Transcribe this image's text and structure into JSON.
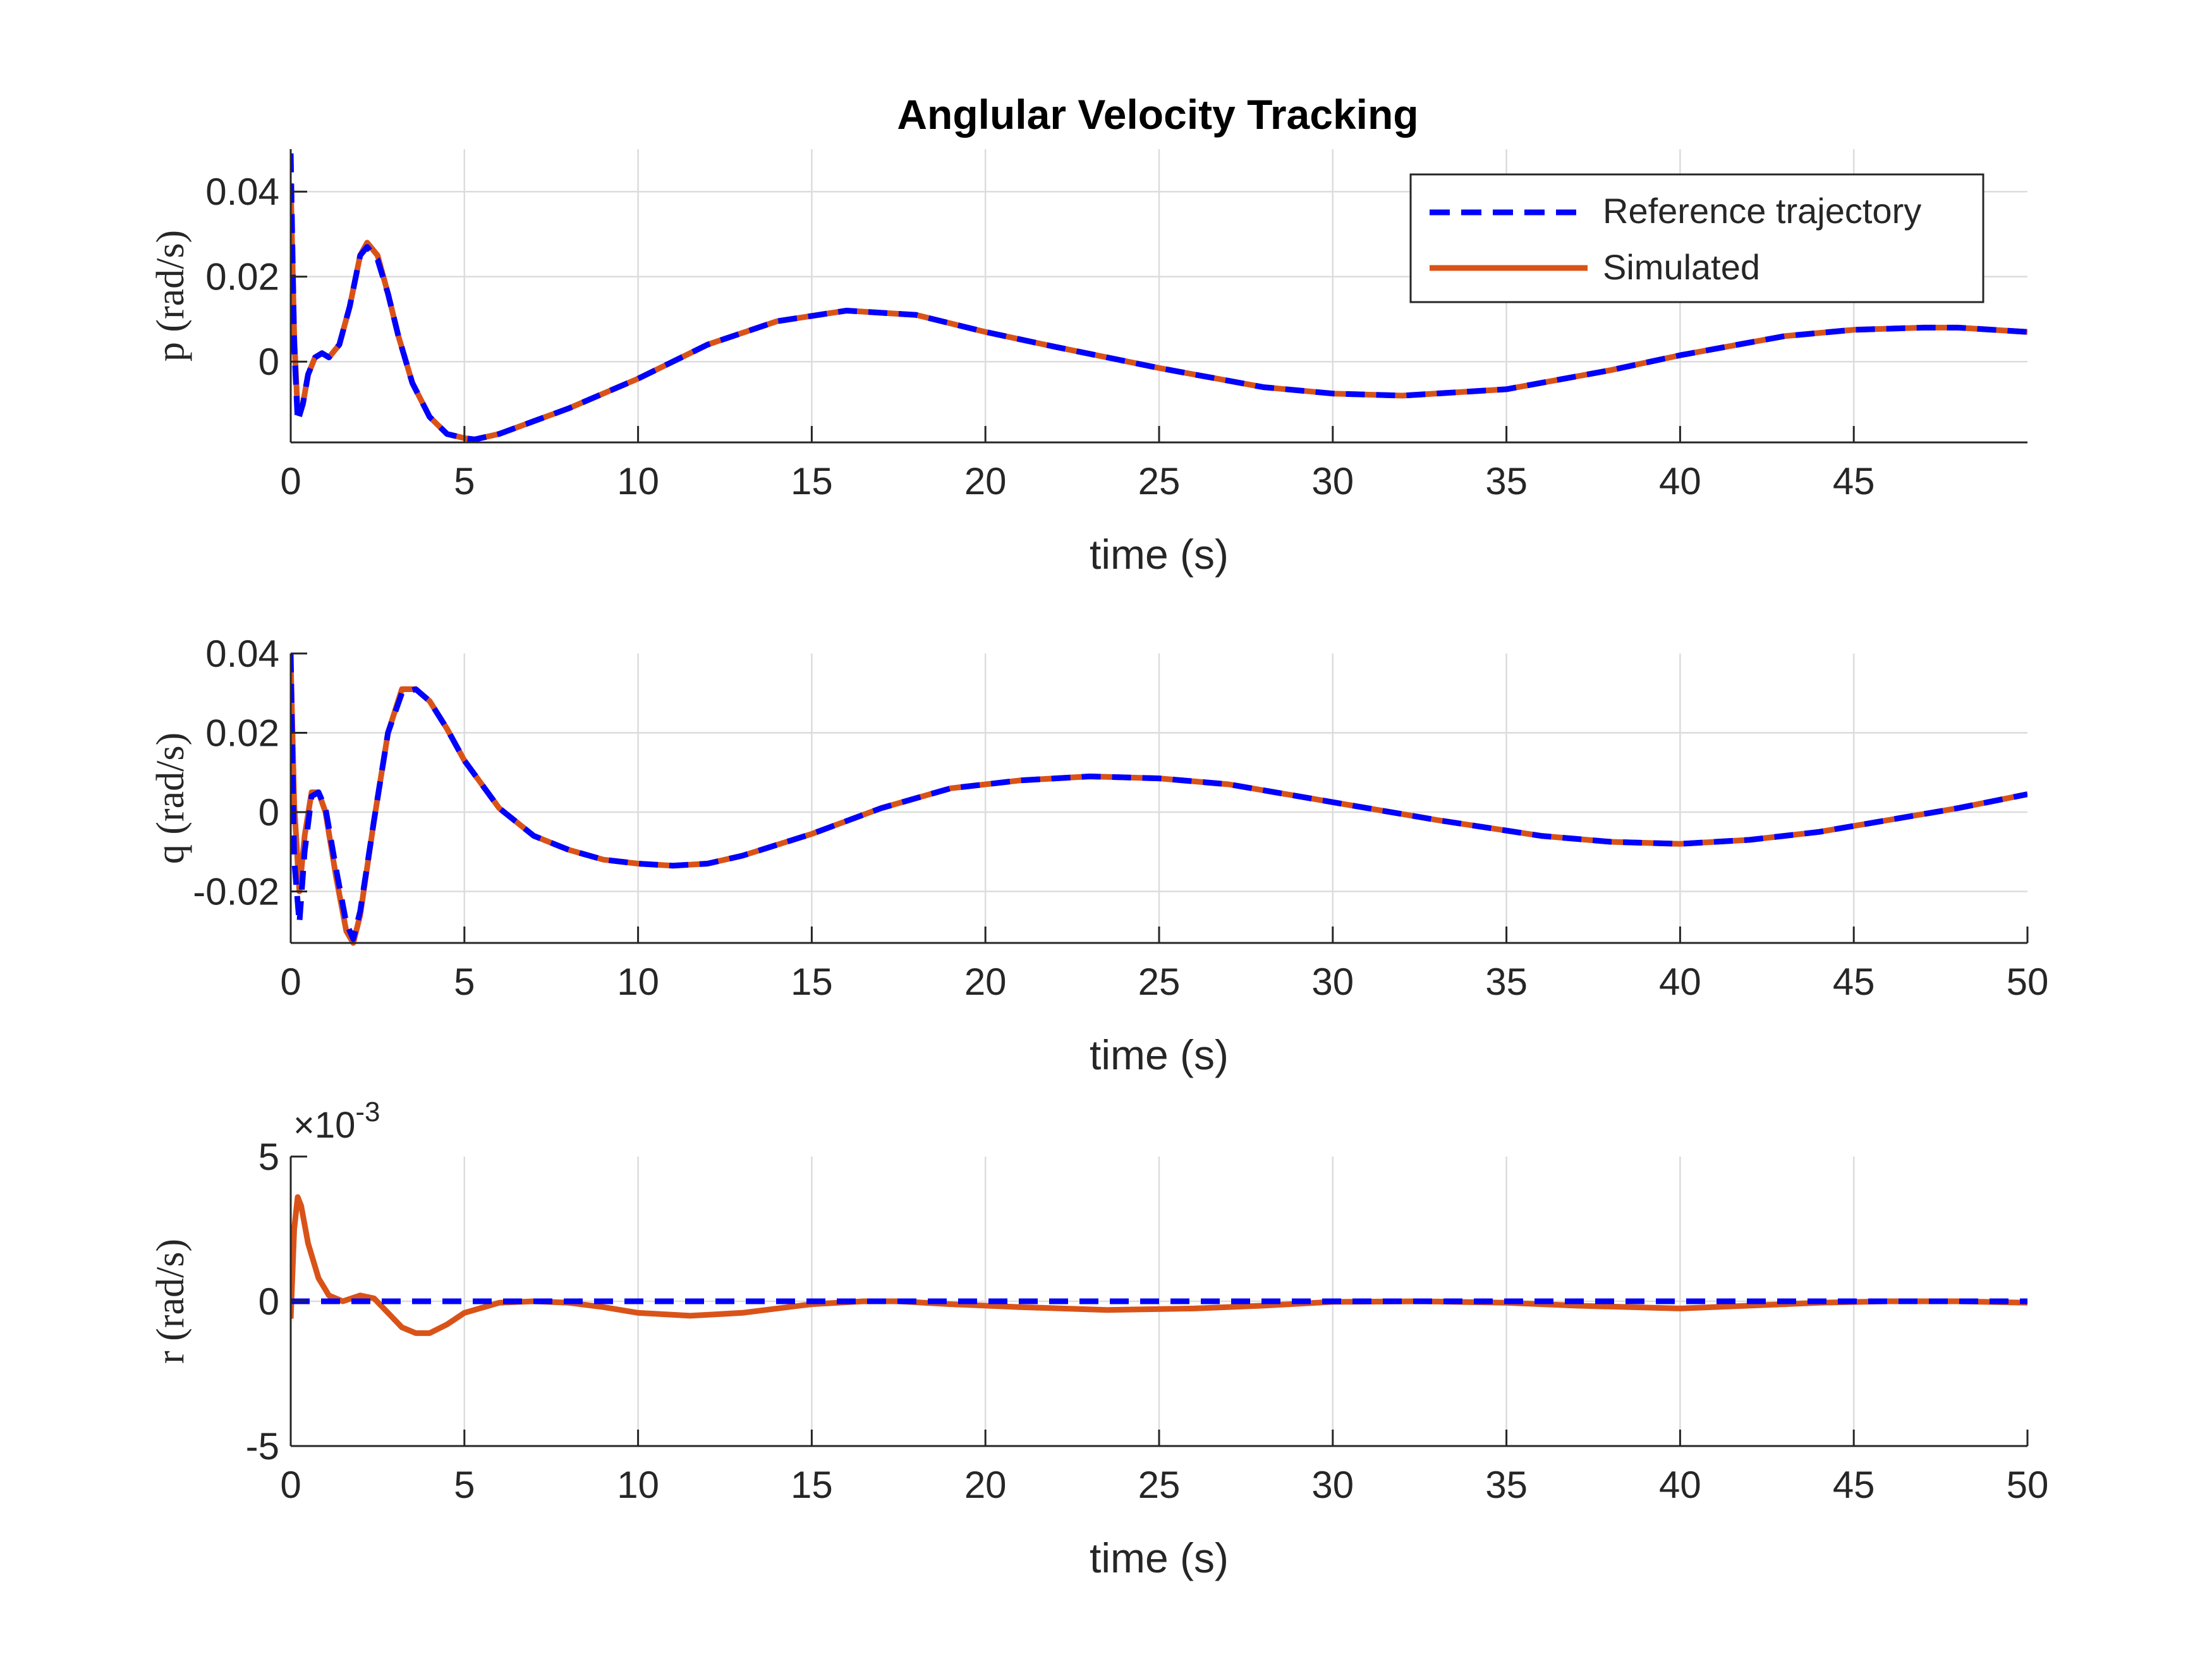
{
  "figure": {
    "title": "Anglular Velocity Tracking",
    "legend": {
      "position": "top-right",
      "entries": [
        {
          "label": "Reference trajectory",
          "style": "dashed",
          "color": "#0000FF"
        },
        {
          "label": "Simulated",
          "style": "solid",
          "color": "#D95319"
        }
      ]
    }
  },
  "chart_data": [
    {
      "type": "line",
      "title": "Anglular Velocity Tracking",
      "xlabel": "time (s)",
      "ylabel": "p (rad/s)",
      "xlim": [
        0,
        50
      ],
      "ylim": [
        -0.019,
        0.05
      ],
      "xticks": [
        0,
        5,
        10,
        15,
        20,
        25,
        30,
        35,
        40,
        45
      ],
      "xticklabels": [
        "0",
        "5",
        "10",
        "15",
        "20",
        "25",
        "30",
        "35",
        "40",
        "45"
      ],
      "yticks": [
        0,
        0.02,
        0.04
      ],
      "yticklabels": [
        "0",
        "0.02",
        "0.04"
      ],
      "grid": true,
      "exponent_label": "",
      "series": [
        {
          "name": "Reference trajectory",
          "color": "#0000FF",
          "style": "dashed",
          "x": [
            0,
            0.1,
            0.2,
            0.35,
            0.5,
            0.7,
            0.9,
            1.1,
            1.4,
            1.7,
            2.0,
            2.2,
            2.5,
            2.8,
            3.1,
            3.5,
            4.0,
            4.5,
            5.0,
            5.3,
            6,
            7,
            8,
            10,
            12,
            14,
            16,
            18,
            20,
            22,
            25,
            28,
            30,
            32,
            35,
            38,
            40,
            43,
            45,
            47,
            48,
            50
          ],
          "y": [
            0.049,
            0.004,
            -0.014,
            -0.01,
            -0.003,
            0.001,
            0.002,
            0.001,
            0.004,
            0.013,
            0.025,
            0.027,
            0.024,
            0.016,
            0.006,
            -0.005,
            -0.013,
            -0.017,
            -0.018,
            -0.0183,
            -0.017,
            -0.014,
            -0.011,
            -0.004,
            0.004,
            0.0095,
            0.012,
            0.011,
            0.007,
            0.0035,
            -0.0015,
            -0.006,
            -0.0075,
            -0.008,
            -0.0065,
            -0.002,
            0.0015,
            0.006,
            0.0075,
            0.008,
            0.008,
            0.007
          ]
        },
        {
          "name": "Simulated",
          "color": "#D95319",
          "style": "solid",
          "x": [
            0,
            0.1,
            0.2,
            0.35,
            0.5,
            0.7,
            0.9,
            1.1,
            1.4,
            1.7,
            2.0,
            2.2,
            2.5,
            2.8,
            3.1,
            3.5,
            4.0,
            4.5,
            5.0,
            5.3,
            6,
            7,
            8,
            10,
            12,
            14,
            16,
            18,
            20,
            22,
            25,
            28,
            30,
            32,
            35,
            38,
            40,
            43,
            45,
            47,
            48,
            50
          ],
          "y": [
            0.042,
            0.006,
            -0.012,
            -0.01,
            -0.003,
            0.001,
            0.002,
            0.001,
            0.004,
            0.013,
            0.025,
            0.028,
            0.025,
            0.016,
            0.006,
            -0.005,
            -0.013,
            -0.017,
            -0.018,
            -0.0183,
            -0.017,
            -0.014,
            -0.011,
            -0.004,
            0.004,
            0.0095,
            0.012,
            0.011,
            0.007,
            0.0035,
            -0.0015,
            -0.006,
            -0.0075,
            -0.008,
            -0.0065,
            -0.002,
            0.0015,
            0.006,
            0.0075,
            0.008,
            0.008,
            0.007
          ]
        }
      ]
    },
    {
      "type": "line",
      "xlabel": "time (s)",
      "ylabel": "q (rad/s)",
      "xlim": [
        0,
        50
      ],
      "ylim": [
        -0.033,
        0.04
      ],
      "xticks": [
        0,
        5,
        10,
        15,
        20,
        25,
        30,
        35,
        40,
        45,
        50
      ],
      "xticklabels": [
        "0",
        "5",
        "10",
        "15",
        "20",
        "25",
        "30",
        "35",
        "40",
        "45",
        "50"
      ],
      "yticks": [
        -0.02,
        0,
        0.02,
        0.04
      ],
      "yticklabels": [
        "-0.02",
        "0",
        "0.02",
        "0.04"
      ],
      "grid": true,
      "exponent_label": "",
      "series": [
        {
          "name": "Reference trajectory",
          "color": "#0000FF",
          "style": "dashed",
          "x": [
            0,
            0.1,
            0.25,
            0.4,
            0.6,
            0.8,
            1.0,
            1.3,
            1.6,
            1.8,
            2.0,
            2.4,
            2.8,
            3.2,
            3.6,
            4.0,
            4.5,
            5.0,
            6,
            7,
            8,
            9,
            10,
            11,
            12,
            13,
            15,
            17,
            19,
            21,
            23,
            25,
            27,
            30,
            33,
            36,
            38,
            40,
            42,
            44,
            46,
            48,
            50
          ],
          "y": [
            0.04,
            -0.012,
            -0.028,
            -0.01,
            0.004,
            0.005,
            0.001,
            -0.014,
            -0.028,
            -0.032,
            -0.025,
            -0.002,
            0.02,
            0.03,
            0.031,
            0.028,
            0.021,
            0.013,
            0.001,
            -0.006,
            -0.0095,
            -0.012,
            -0.013,
            -0.0135,
            -0.013,
            -0.011,
            -0.0055,
            0.001,
            0.006,
            0.008,
            0.009,
            0.0085,
            0.007,
            0.0025,
            -0.002,
            -0.006,
            -0.0075,
            -0.008,
            -0.007,
            -0.005,
            -0.002,
            0.001,
            0.0045
          ]
        },
        {
          "name": "Simulated",
          "color": "#D95319",
          "style": "solid",
          "x": [
            0,
            0.1,
            0.25,
            0.4,
            0.6,
            0.8,
            1.0,
            1.3,
            1.6,
            1.8,
            2.0,
            2.4,
            2.8,
            3.2,
            3.6,
            4.0,
            4.5,
            5.0,
            6,
            7,
            8,
            9,
            10,
            11,
            12,
            13,
            15,
            17,
            19,
            21,
            23,
            25,
            27,
            30,
            33,
            36,
            38,
            40,
            42,
            44,
            46,
            48,
            50
          ],
          "y": [
            0.038,
            0.002,
            -0.02,
            -0.006,
            0.005,
            0.005,
            0.0,
            -0.016,
            -0.03,
            -0.033,
            -0.026,
            -0.002,
            0.02,
            0.031,
            0.031,
            0.028,
            0.021,
            0.013,
            0.001,
            -0.006,
            -0.0095,
            -0.012,
            -0.013,
            -0.0135,
            -0.013,
            -0.011,
            -0.0055,
            0.001,
            0.006,
            0.008,
            0.009,
            0.0085,
            0.007,
            0.0025,
            -0.002,
            -0.006,
            -0.0075,
            -0.008,
            -0.007,
            -0.005,
            -0.002,
            0.001,
            0.0045
          ]
        }
      ]
    },
    {
      "type": "line",
      "xlabel": "time (s)",
      "ylabel": "r (rad/s)",
      "xlim": [
        0,
        50
      ],
      "ylim": [
        -5,
        5
      ],
      "xticks": [
        0,
        5,
        10,
        15,
        20,
        25,
        30,
        35,
        40,
        45,
        50
      ],
      "xticklabels": [
        "0",
        "5",
        "10",
        "15",
        "20",
        "25",
        "30",
        "35",
        "40",
        "45",
        "50"
      ],
      "yticks": [
        -5,
        0,
        5
      ],
      "yticklabels": [
        "-5",
        "0",
        "5"
      ],
      "grid": true,
      "exponent_label": "×10",
      "exponent_power": "-3",
      "series": [
        {
          "name": "Reference trajectory",
          "color": "#0000FF",
          "style": "dashed",
          "x": [
            0,
            50
          ],
          "y": [
            0,
            0
          ]
        },
        {
          "name": "Simulated",
          "color": "#D95319",
          "style": "solid",
          "x": [
            0,
            0.1,
            0.2,
            0.3,
            0.5,
            0.8,
            1.1,
            1.5,
            2.0,
            2.4,
            2.8,
            3.2,
            3.6,
            4.0,
            4.5,
            5.0,
            6,
            7,
            8,
            9,
            10,
            11.5,
            13,
            15,
            16.5,
            17.5,
            19,
            21,
            23.5,
            26,
            28,
            30,
            32.5,
            35,
            37,
            40,
            42,
            44,
            46,
            48,
            50
          ],
          "y": [
            -0.6,
            2.5,
            3.6,
            3.3,
            2.0,
            0.8,
            0.2,
            0.0,
            0.2,
            0.1,
            -0.4,
            -0.9,
            -1.1,
            -1.1,
            -0.8,
            -0.4,
            -0.05,
            0.0,
            -0.05,
            -0.2,
            -0.4,
            -0.5,
            -0.4,
            -0.1,
            0.0,
            0.0,
            -0.1,
            -0.2,
            -0.3,
            -0.25,
            -0.15,
            -0.02,
            0.0,
            -0.05,
            -0.15,
            -0.25,
            -0.15,
            -0.05,
            0.0,
            0.0,
            -0.05
          ]
        }
      ]
    }
  ]
}
